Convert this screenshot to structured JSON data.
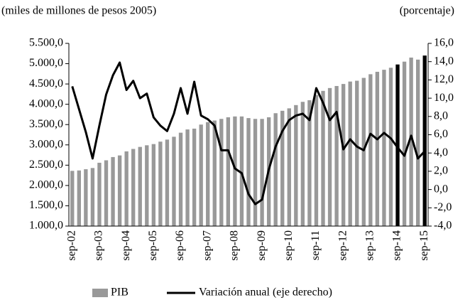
{
  "chart_data": {
    "type": "bar",
    "y_axis_label": "(miles de millones de pesos 2005)",
    "y2_axis_label": "(porcentaje)",
    "categories": [
      "sep-02",
      null,
      null,
      null,
      "sep-03",
      null,
      null,
      null,
      "sep-04",
      null,
      null,
      null,
      "sep-05",
      null,
      null,
      null,
      "sep-06",
      null,
      null,
      null,
      "sep-07",
      null,
      null,
      null,
      "sep-08",
      null,
      null,
      null,
      "sep-09",
      null,
      null,
      null,
      "sep-10",
      null,
      null,
      null,
      "sep-11",
      null,
      null,
      null,
      "sep-12",
      null,
      null,
      null,
      "sep-13",
      null,
      null,
      null,
      "sep-14",
      null,
      null,
      null,
      "sep-15"
    ],
    "series": [
      {
        "name": "PIB",
        "type": "bar",
        "color": "#999999",
        "colors": [
          "#999999",
          "#999999",
          "#999999",
          "#999999",
          "#999999",
          "#999999",
          "#999999",
          "#999999",
          "#999999",
          "#999999",
          "#999999",
          "#999999",
          "#999999",
          "#999999",
          "#999999",
          "#999999",
          "#999999",
          "#999999",
          "#999999",
          "#999999",
          "#999999",
          "#999999",
          "#999999",
          "#999999",
          "#999999",
          "#999999",
          "#999999",
          "#999999",
          "#999999",
          "#999999",
          "#999999",
          "#999999",
          "#999999",
          "#999999",
          "#999999",
          "#999999",
          "#999999",
          "#999999",
          "#999999",
          "#999999",
          "#999999",
          "#999999",
          "#999999",
          "#999999",
          "#999999",
          "#999999",
          "#999999",
          "#999999",
          "#000000",
          "#999999",
          "#999999",
          "#999999",
          "#000000"
        ],
        "values": [
          2360,
          2370,
          2400,
          2430,
          2560,
          2620,
          2700,
          2740,
          2840,
          2900,
          2950,
          2990,
          3020,
          3080,
          3130,
          3200,
          3300,
          3380,
          3400,
          3500,
          3560,
          3600,
          3640,
          3680,
          3700,
          3700,
          3660,
          3640,
          3640,
          3680,
          3780,
          3840,
          3900,
          3980,
          4060,
          4100,
          4230,
          4330,
          4400,
          4450,
          4500,
          4560,
          4580,
          4650,
          4740,
          4800,
          4850,
          4900,
          4980,
          5050,
          5150,
          5100,
          5200
        ]
      },
      {
        "name": "Variación anual (eje derecho)",
        "type": "line",
        "color": "#000000",
        "axis": "y2",
        "values": [
          11.3,
          8.8,
          6.3,
          3.4,
          7.0,
          10.4,
          12.5,
          13.9,
          10.9,
          11.9,
          10.0,
          10.5,
          7.9,
          7.0,
          6.4,
          8.3,
          11.1,
          8.3,
          11.8,
          8.1,
          7.7,
          7.0,
          4.3,
          4.3,
          2.3,
          1.8,
          -0.5,
          -1.6,
          -1.1,
          2.2,
          4.7,
          6.4,
          7.6,
          8.1,
          8.3,
          7.6,
          11.1,
          9.5,
          7.6,
          8.5,
          4.4,
          5.5,
          4.7,
          4.3,
          6.1,
          5.5,
          6.2,
          5.6,
          4.6,
          3.7,
          5.9,
          3.4,
          4.2
        ]
      }
    ],
    "ylim": [
      1000,
      5500
    ],
    "yticks": [
      {
        "value": 1000,
        "label": "1.000,0"
      },
      {
        "value": 1500,
        "label": "1.500,0"
      },
      {
        "value": 2000,
        "label": "2.000,0"
      },
      {
        "value": 2500,
        "label": "2.500,0"
      },
      {
        "value": 3000,
        "label": "3.000,0"
      },
      {
        "value": 3500,
        "label": "3.500,0"
      },
      {
        "value": 4000,
        "label": "4.000,0"
      },
      {
        "value": 4500,
        "label": "4.500,0"
      },
      {
        "value": 5000,
        "label": "5.000,0"
      },
      {
        "value": 5500,
        "label": "5.500,0"
      }
    ],
    "y2lim": [
      -4,
      16
    ],
    "y2ticks": [
      {
        "value": -4,
        "label": "-4,0"
      },
      {
        "value": -2,
        "label": "-2,0"
      },
      {
        "value": 0,
        "label": "0,0"
      },
      {
        "value": 2,
        "label": "2,0"
      },
      {
        "value": 4,
        "label": "4,0"
      },
      {
        "value": 6,
        "label": "6,0"
      },
      {
        "value": 8,
        "label": "8,0"
      },
      {
        "value": 10,
        "label": "10,0"
      },
      {
        "value": 12,
        "label": "12,0"
      },
      {
        "value": 14,
        "label": "14,0"
      },
      {
        "value": 16,
        "label": "16,0"
      }
    ],
    "grid": false,
    "legend": "bottom"
  }
}
